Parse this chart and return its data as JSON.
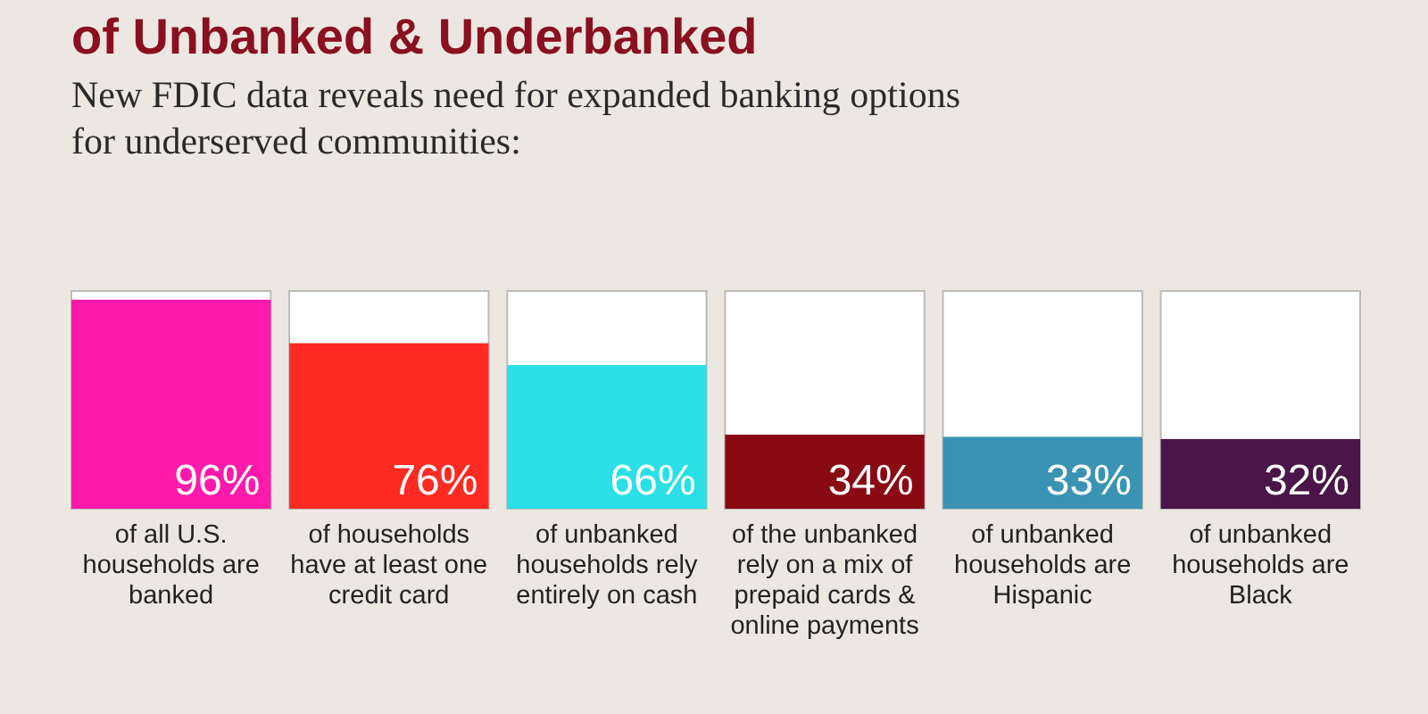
{
  "chart_data": {
    "type": "bar",
    "title": "of Unbanked & Underbanked",
    "subtitle": "New FDIC data reveals need for expanded banking options for underserved communities:",
    "categories": [
      "of all U.S. households are banked",
      "of households have at least one credit card",
      "of unbanked households rely entirely on cash",
      "of the unbanked rely on a mix of prepaid cards & online payments",
      "of unbanked households are Hispanic",
      "of unbanked households are Black"
    ],
    "values": [
      96,
      76,
      66,
      34,
      33,
      32
    ],
    "colors": [
      "#ff1aab",
      "#ff2a22",
      "#2ae0e6",
      "#8a0a14",
      "#3b93b4",
      "#4a1548"
    ],
    "value_labels": [
      "96%",
      "76%",
      "66%",
      "34%",
      "33%",
      "32%"
    ],
    "ylim": [
      0,
      100
    ]
  }
}
